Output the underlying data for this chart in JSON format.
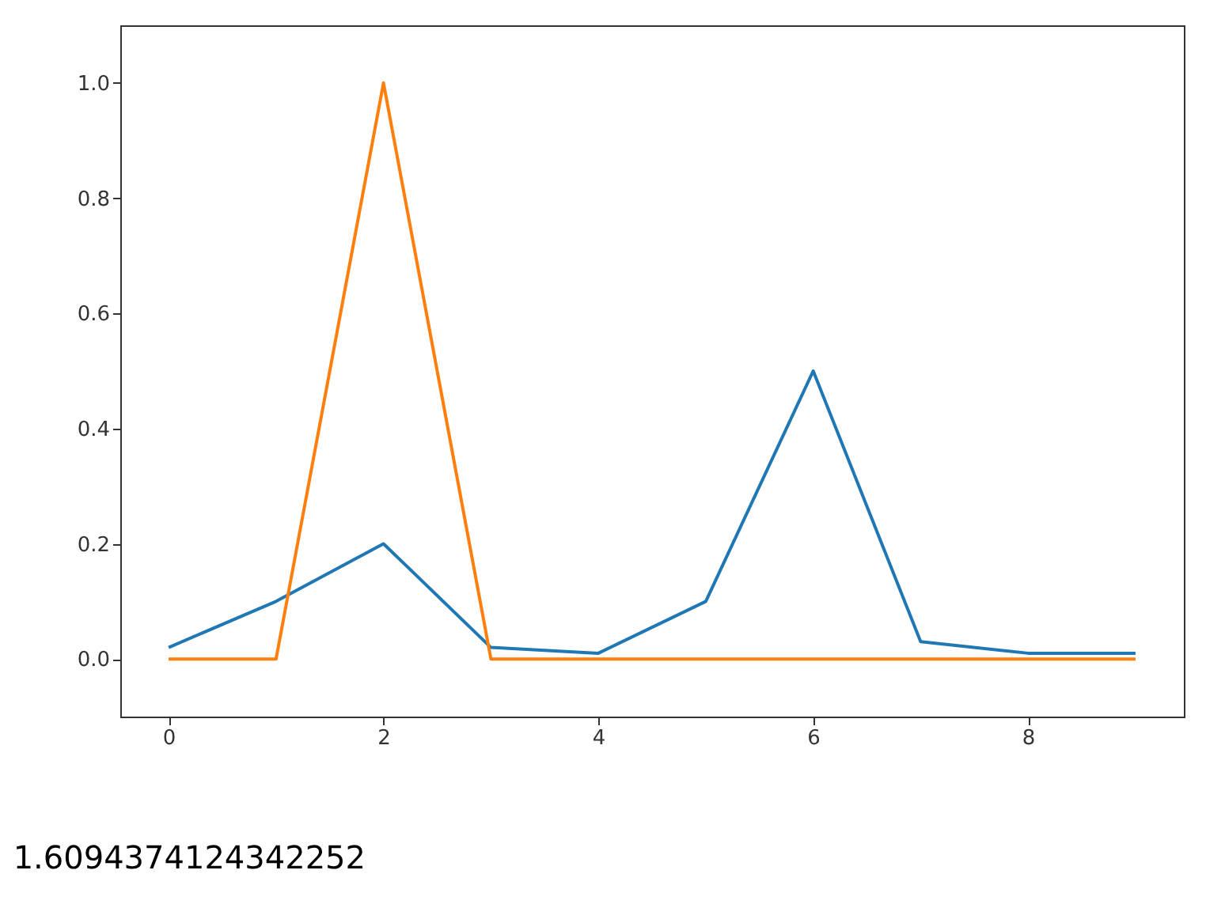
{
  "chart_data": {
    "type": "line",
    "x": [
      0,
      1,
      2,
      3,
      4,
      5,
      6,
      7,
      8,
      9
    ],
    "series": [
      {
        "color": "#1f77b4",
        "values": [
          0.02,
          0.1,
          0.2,
          0.02,
          0.01,
          0.1,
          0.5,
          0.03,
          0.01,
          0.01
        ]
      },
      {
        "color": "#ff7f0e",
        "values": [
          0,
          0,
          1,
          0,
          0,
          0,
          0,
          0,
          0,
          0
        ]
      }
    ],
    "xlim": [
      -0.45,
      9.45
    ],
    "ylim": [
      -0.1,
      1.1
    ],
    "xticks": [
      0,
      2,
      4,
      6,
      8
    ],
    "yticks": [
      {
        "value": 0,
        "label": "0.0"
      },
      {
        "value": 0.2,
        "label": "0.2"
      },
      {
        "value": 0.4,
        "label": "0.4"
      },
      {
        "value": 0.6,
        "label": "0.6"
      },
      {
        "value": 0.8,
        "label": "0.8"
      },
      {
        "value": 1.0,
        "label": "1.0"
      }
    ],
    "grid": false,
    "marker": "none",
    "line_style": "solid",
    "annotations": [
      "1.6094374124342252"
    ]
  }
}
